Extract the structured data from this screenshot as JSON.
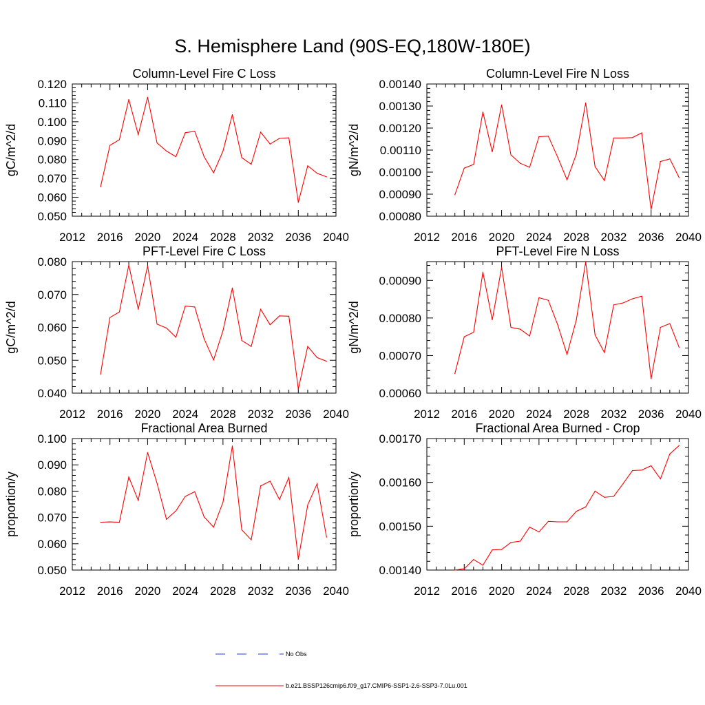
{
  "figure": {
    "title": "S. Hemisphere Land (90S-EQ,180W-180E)"
  },
  "legend": {
    "items": [
      {
        "label": "No Obs",
        "color": "#1f3fbf",
        "style": "dashed"
      },
      {
        "label": "b.e21.BSSP126cmip6.f09_g17.CMIP6-SSP1-2.6-SSP3-7.0Lu.001",
        "color": "#ff0000",
        "style": "solid"
      }
    ]
  },
  "chart_data": [
    {
      "type": "line",
      "title": "Column-Level Fire C Loss",
      "xlabel": "",
      "ylabel": "gC/m^2/d",
      "xlim": [
        2012,
        2040
      ],
      "ylim": [
        0.05,
        0.12
      ],
      "xticks": [
        "2012",
        "2016",
        "2020",
        "2024",
        "2028",
        "2032",
        "2036",
        "2040"
      ],
      "yticks": [
        "0.050",
        "0.060",
        "0.070",
        "0.080",
        "0.090",
        "0.100",
        "0.110",
        "0.120"
      ],
      "grid": false,
      "series": [
        {
          "color": "#ff0000",
          "x": [
            2015,
            2016,
            2017,
            2018,
            2019,
            2020,
            2021,
            2022,
            2023,
            2024,
            2025,
            2026,
            2027,
            2028,
            2029,
            2030,
            2031,
            2032,
            2033,
            2034,
            2035,
            2036,
            2037,
            2038,
            2039
          ],
          "y": [
            0.0655,
            0.0875,
            0.0905,
            0.1118,
            0.0932,
            0.113,
            0.0888,
            0.0845,
            0.0815,
            0.0942,
            0.095,
            0.0815,
            0.073,
            0.0845,
            0.1038,
            0.081,
            0.0775,
            0.0945,
            0.0882,
            0.0912,
            0.0915,
            0.0573,
            0.0767,
            0.0727,
            0.0708
          ]
        }
      ]
    },
    {
      "type": "line",
      "title": "Column-Level Fire N Loss",
      "xlabel": "",
      "ylabel": "gN/m^2/d",
      "xlim": [
        2012,
        2040
      ],
      "ylim": [
        0.0008,
        0.0014
      ],
      "xticks": [
        "2012",
        "2016",
        "2020",
        "2024",
        "2028",
        "2032",
        "2036",
        "2040"
      ],
      "yticks": [
        "0.00080",
        "0.00090",
        "0.00100",
        "0.00110",
        "0.00120",
        "0.00130",
        "0.00140"
      ],
      "grid": false,
      "series": [
        {
          "color": "#ff0000",
          "x": [
            2015,
            2016,
            2017,
            2018,
            2019,
            2020,
            2021,
            2022,
            2023,
            2024,
            2025,
            2026,
            2027,
            2028,
            2029,
            2030,
            2031,
            2032,
            2033,
            2034,
            2035,
            2036,
            2037,
            2038,
            2039
          ],
          "y": [
            0.000897,
            0.001018,
            0.001035,
            0.001273,
            0.001092,
            0.001305,
            0.001078,
            0.00104,
            0.001022,
            0.001161,
            0.001163,
            0.001068,
            0.000965,
            0.001082,
            0.001314,
            0.001025,
            0.000962,
            0.001155,
            0.001155,
            0.001157,
            0.001178,
            0.00083,
            0.001048,
            0.00106,
            0.000975
          ]
        }
      ]
    },
    {
      "type": "line",
      "title": "PFT-Level Fire C Loss",
      "xlabel": "",
      "ylabel": "gC/m^2/d",
      "xlim": [
        2012,
        2040
      ],
      "ylim": [
        0.04,
        0.08
      ],
      "xticks": [
        "2012",
        "2016",
        "2020",
        "2024",
        "2028",
        "2032",
        "2036",
        "2040"
      ],
      "yticks": [
        "0.040",
        "0.050",
        "0.060",
        "0.070",
        "0.080"
      ],
      "grid": false,
      "series": [
        {
          "color": "#ff0000",
          "x": [
            2015,
            2016,
            2017,
            2018,
            2019,
            2020,
            2021,
            2022,
            2023,
            2024,
            2025,
            2026,
            2027,
            2028,
            2029,
            2030,
            2031,
            2032,
            2033,
            2034,
            2035,
            2036,
            2037,
            2038,
            2039
          ],
          "y": [
            0.0457,
            0.063,
            0.0647,
            0.079,
            0.0655,
            0.0787,
            0.061,
            0.0598,
            0.057,
            0.0665,
            0.0662,
            0.0565,
            0.0501,
            0.059,
            0.072,
            0.056,
            0.0542,
            0.0655,
            0.0608,
            0.0635,
            0.0634,
            0.0412,
            0.0542,
            0.0508,
            0.0497
          ]
        }
      ]
    },
    {
      "type": "line",
      "title": "PFT-Level Fire N Loss",
      "xlabel": "",
      "ylabel": "gN/m^2/d",
      "xlim": [
        2012,
        2040
      ],
      "ylim": [
        0.0006,
        0.00095
      ],
      "xticks": [
        "2012",
        "2016",
        "2020",
        "2024",
        "2028",
        "2032",
        "2036",
        "2040"
      ],
      "yticks": [
        "0.00060",
        "0.00070",
        "0.00080",
        "0.00090"
      ],
      "grid": false,
      "series": [
        {
          "color": "#ff0000",
          "x": [
            2015,
            2016,
            2017,
            2018,
            2019,
            2020,
            2021,
            2022,
            2023,
            2024,
            2025,
            2026,
            2027,
            2028,
            2029,
            2030,
            2031,
            2032,
            2033,
            2034,
            2035,
            2036,
            2037,
            2038,
            2039
          ],
          "y": [
            0.000652,
            0.00075,
            0.000762,
            0.000922,
            0.000795,
            0.000935,
            0.000775,
            0.00077,
            0.000752,
            0.000854,
            0.000847,
            0.000782,
            0.000703,
            0.000795,
            0.000949,
            0.000755,
            0.000708,
            0.000835,
            0.00084,
            0.000851,
            0.000858,
            0.000638,
            0.000775,
            0.000785,
            0.000722
          ]
        }
      ]
    },
    {
      "type": "line",
      "title": "Fractional Area Burned",
      "xlabel": "",
      "ylabel": "proportion/y",
      "xlim": [
        2012,
        2040
      ],
      "ylim": [
        0.05,
        0.1
      ],
      "xticks": [
        "2012",
        "2016",
        "2020",
        "2024",
        "2028",
        "2032",
        "2036",
        "2040"
      ],
      "yticks": [
        "0.050",
        "0.060",
        "0.070",
        "0.080",
        "0.090",
        "0.100"
      ],
      "grid": false,
      "series": [
        {
          "color": "#ff0000",
          "x": [
            2015,
            2016,
            2017,
            2018,
            2019,
            2020,
            2021,
            2022,
            2023,
            2024,
            2025,
            2026,
            2027,
            2028,
            2029,
            2030,
            2031,
            2032,
            2033,
            2034,
            2035,
            2036,
            2037,
            2038,
            2039
          ],
          "y": [
            0.0682,
            0.0683,
            0.0682,
            0.0854,
            0.0765,
            0.0947,
            0.083,
            0.0693,
            0.0725,
            0.078,
            0.0798,
            0.0702,
            0.0663,
            0.0758,
            0.0972,
            0.0653,
            0.0615,
            0.082,
            0.0838,
            0.0768,
            0.0852,
            0.0541,
            0.0748,
            0.0828,
            0.0625
          ]
        }
      ]
    },
    {
      "type": "line",
      "title": "Fractional Area Burned - Crop",
      "xlabel": "",
      "ylabel": "proportion/y",
      "xlim": [
        2012,
        2040
      ],
      "ylim": [
        0.0014,
        0.0017
      ],
      "xticks": [
        "2012",
        "2016",
        "2020",
        "2024",
        "2028",
        "2032",
        "2036",
        "2040"
      ],
      "yticks": [
        "0.00140",
        "0.00150",
        "0.00160",
        "0.00170"
      ],
      "grid": false,
      "series": [
        {
          "color": "#ff0000",
          "x": [
            2015,
            2016,
            2017,
            2018,
            2019,
            2020,
            2021,
            2022,
            2023,
            2024,
            2025,
            2026,
            2027,
            2028,
            2029,
            2030,
            2031,
            2032,
            2033,
            2034,
            2035,
            2036,
            2037,
            2038,
            2039
          ],
          "y": [
            0.0014,
            0.001403,
            0.001424,
            0.001411,
            0.001446,
            0.001447,
            0.001463,
            0.001466,
            0.001498,
            0.001487,
            0.001511,
            0.00151,
            0.00151,
            0.001534,
            0.001544,
            0.00158,
            0.001566,
            0.001568,
            0.001597,
            0.001627,
            0.001628,
            0.001638,
            0.001608,
            0.001665,
            0.001684
          ]
        }
      ]
    }
  ]
}
